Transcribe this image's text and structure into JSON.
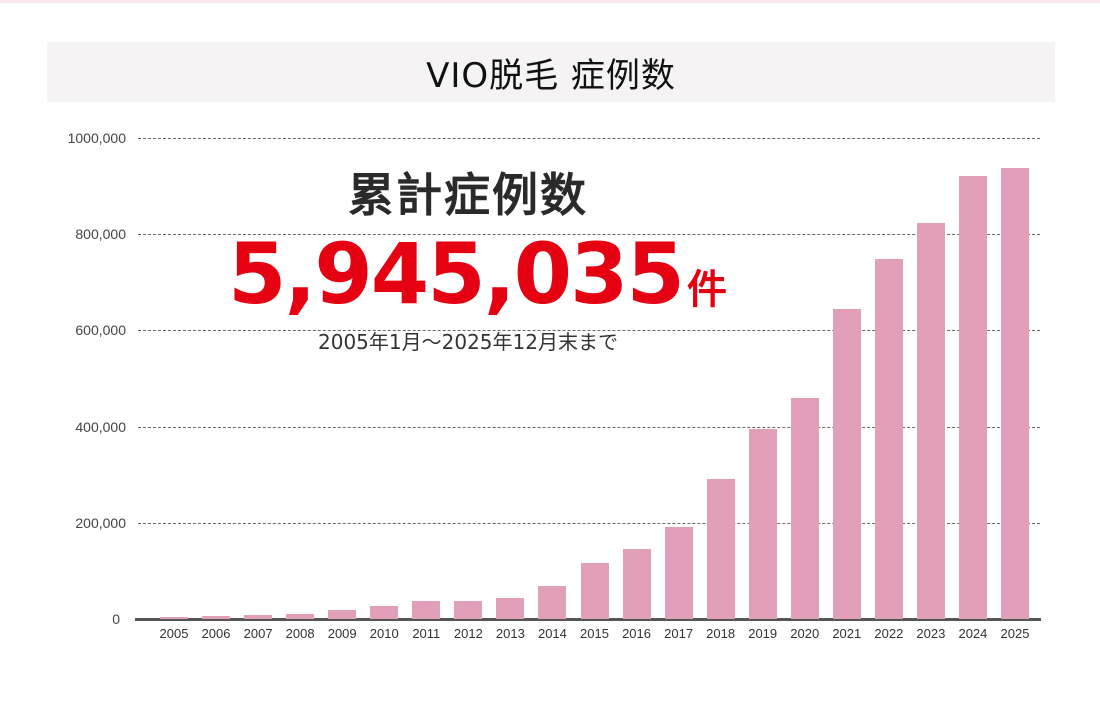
{
  "header": {
    "title": "VIO脱毛 症例数"
  },
  "overlay": {
    "label": "累計症例数",
    "total": "5,945,035",
    "unit": "件",
    "period": "2005年1月～2025年12月末まで"
  },
  "axis": {
    "y_ticks": [
      "1000,000",
      "800,000",
      "600,000",
      "400,000",
      "200,000",
      "0"
    ]
  },
  "colors": {
    "bar": "#e29fba",
    "total_text": "#e50012",
    "title_bg": "#f5f3f4"
  },
  "chart_data": {
    "type": "bar",
    "title": "VIO脱毛 症例数",
    "xlabel": "",
    "ylabel": "",
    "ylim": [
      0,
      1000000
    ],
    "yticks": [
      0,
      200000,
      400000,
      600000,
      800000,
      1000000
    ],
    "grid": true,
    "legend": null,
    "categories": [
      "2005",
      "2006",
      "2007",
      "2008",
      "2009",
      "2010",
      "2011",
      "2012",
      "2013",
      "2014",
      "2015",
      "2016",
      "2017",
      "2018",
      "2019",
      "2020",
      "2021",
      "2022",
      "2023",
      "2024",
      "2025"
    ],
    "values": [
      4000,
      6000,
      9000,
      11000,
      19000,
      28000,
      38000,
      38000,
      44000,
      69000,
      117000,
      146000,
      191000,
      291000,
      395000,
      460000,
      645000,
      749000,
      824000,
      920000,
      937000
    ],
    "annotations": [
      {
        "text": "累計症例数"
      },
      {
        "text": "5,945,035件"
      },
      {
        "text": "2005年1月～2025年12月末まで"
      }
    ]
  }
}
